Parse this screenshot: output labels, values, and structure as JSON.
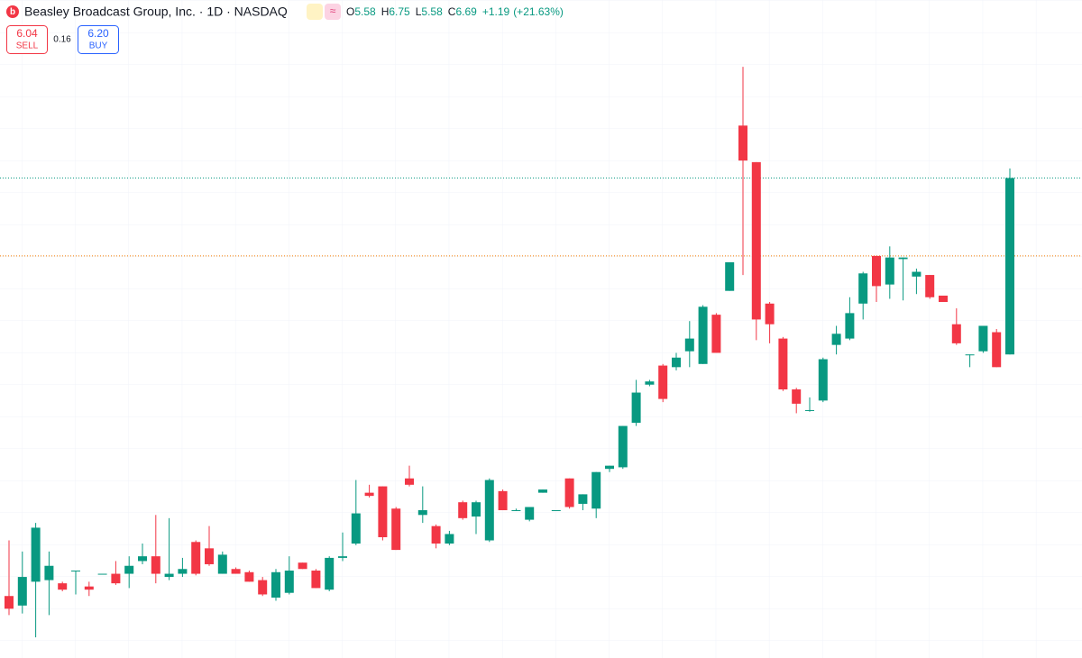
{
  "chart_data": {
    "type": "candlestick",
    "title": "Beasley Broadcast Group, Inc. · 1D · NASDAQ",
    "ohlc_labels": [
      "O",
      "H",
      "L",
      "C"
    ],
    "open": [
      4.06,
      4.0,
      4.15,
      4.16,
      4.14,
      4.22,
      4.12,
      4.2,
      4.2,
      4.2,
      4.28,
      4.31,
      4.18,
      4.2,
      4.4,
      4.36,
      4.2,
      4.23,
      4.21,
      4.16,
      4.05,
      4.08,
      4.27,
      4.22,
      4.1,
      4.3,
      4.39,
      4.71,
      4.75,
      4.61,
      4.8,
      4.57,
      4.5,
      4.39,
      4.65,
      4.56,
      4.41,
      4.72,
      4.6,
      4.54,
      4.71,
      4.6,
      4.8,
      4.64,
      4.61,
      4.86,
      4.87,
      5.15,
      5.39,
      5.51,
      5.5,
      5.6,
      5.52,
      5.83,
      5.98,
      7.02,
      6.79,
      5.9,
      5.68,
      5.36,
      5.23,
      5.29,
      5.64,
      5.68,
      5.9,
      6.2,
      6.02,
      6.18,
      6.07,
      6.08,
      5.95,
      5.77,
      5.58,
      5.6,
      5.72,
      5.58
    ],
    "high": [
      4.41,
      4.34,
      4.52,
      4.34,
      4.15,
      4.22,
      4.15,
      4.2,
      4.28,
      4.31,
      4.39,
      4.57,
      4.55,
      4.3,
      4.41,
      4.5,
      4.34,
      4.24,
      4.22,
      4.18,
      4.23,
      4.31,
      4.27,
      4.23,
      4.31,
      4.46,
      4.79,
      4.76,
      4.75,
      4.62,
      4.88,
      4.75,
      4.51,
      4.47,
      4.66,
      4.66,
      4.8,
      4.73,
      4.61,
      4.62,
      4.73,
      4.6,
      4.8,
      4.7,
      4.84,
      4.88,
      5.13,
      5.42,
      5.42,
      5.52,
      5.59,
      5.79,
      5.89,
      5.84,
      6.16,
      7.39,
      6.79,
      5.91,
      5.69,
      5.37,
      5.31,
      5.56,
      5.76,
      5.94,
      6.1,
      6.2,
      6.26,
      6.19,
      6.12,
      6.08,
      5.95,
      5.87,
      5.58,
      5.76,
      5.74,
      6.75
    ],
    "low": [
      3.94,
      3.95,
      3.8,
      3.94,
      4.09,
      4.07,
      4.06,
      4.2,
      4.13,
      4.11,
      4.26,
      4.14,
      4.16,
      4.18,
      4.19,
      4.25,
      4.2,
      4.2,
      4.15,
      4.06,
      4.03,
      4.07,
      4.23,
      4.11,
      4.09,
      4.28,
      4.38,
      4.68,
      4.41,
      4.35,
      4.75,
      4.52,
      4.36,
      4.38,
      4.54,
      4.45,
      4.4,
      4.6,
      4.6,
      4.53,
      4.71,
      4.6,
      4.61,
      4.6,
      4.55,
      4.84,
      4.86,
      5.13,
      5.38,
      5.28,
      5.48,
      5.5,
      5.52,
      5.59,
      5.98,
      6.08,
      5.67,
      5.65,
      5.35,
      5.21,
      5.22,
      5.28,
      5.58,
      5.67,
      5.8,
      5.91,
      5.93,
      5.92,
      5.96,
      5.93,
      5.91,
      5.64,
      5.5,
      5.59,
      5.5,
      5.58
    ],
    "close": [
      3.98,
      4.18,
      4.49,
      4.25,
      4.1,
      4.22,
      4.1,
      4.2,
      4.14,
      4.25,
      4.31,
      4.2,
      4.2,
      4.23,
      4.2,
      4.26,
      4.32,
      4.2,
      4.15,
      4.07,
      4.21,
      4.22,
      4.23,
      4.11,
      4.3,
      4.31,
      4.58,
      4.69,
      4.43,
      4.35,
      4.76,
      4.6,
      4.39,
      4.45,
      4.55,
      4.65,
      4.79,
      4.6,
      4.6,
      4.62,
      4.73,
      4.6,
      4.62,
      4.7,
      4.84,
      4.88,
      5.13,
      5.34,
      5.41,
      5.3,
      5.56,
      5.68,
      5.88,
      5.59,
      6.16,
      6.8,
      5.8,
      5.77,
      5.36,
      5.27,
      5.23,
      5.55,
      5.71,
      5.84,
      6.09,
      6.01,
      6.19,
      6.19,
      6.1,
      5.94,
      5.91,
      5.65,
      5.58,
      5.76,
      5.5,
      6.69
    ],
    "change": {
      "value": 1.19,
      "label": "+1.19"
    },
    "change_percent": {
      "value": 21.63,
      "label": "(+21.63%)"
    },
    "sell": {
      "price": 6.04,
      "label": "SELL"
    },
    "spread": 0.16,
    "buy": {
      "price": {
        "value": 6.2,
        "label": "6.20"
      },
      "label": "BUY"
    },
    "up_color": "#089981",
    "down_color": "#f23645",
    "ylim": [
      3.67,
      7.64
    ]
  }
}
